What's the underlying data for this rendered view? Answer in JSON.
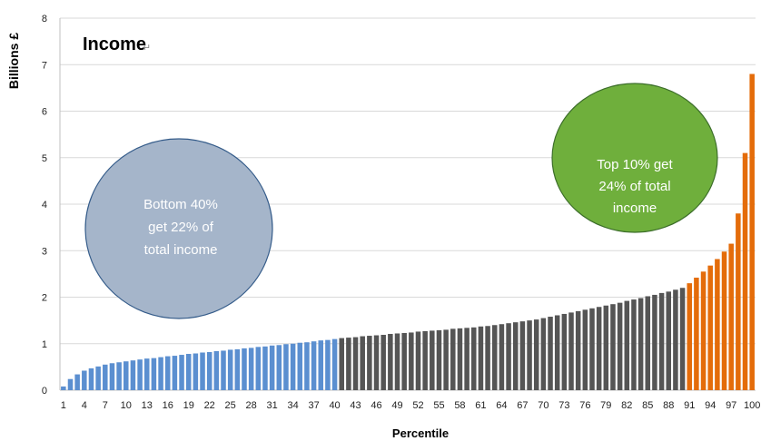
{
  "chart_data": {
    "type": "bar",
    "title": "Income",
    "xlabel": "Percentile",
    "ylabel": "Billions £",
    "ylim": [
      0,
      8
    ],
    "yticks": [
      0,
      1,
      2,
      3,
      4,
      5,
      6,
      7,
      8
    ],
    "grid": true,
    "x_tick_labels": [
      "1",
      "4",
      "7",
      "10",
      "13",
      "16",
      "19",
      "22",
      "25",
      "28",
      "31",
      "34",
      "37",
      "40",
      "43",
      "46",
      "49",
      "52",
      "55",
      "58",
      "61",
      "64",
      "67",
      "70",
      "73",
      "76",
      "79",
      "82",
      "85",
      "88",
      "91",
      "94",
      "97",
      "100"
    ],
    "categories": [
      "1",
      "2",
      "3",
      "4",
      "5",
      "6",
      "7",
      "8",
      "9",
      "10",
      "11",
      "12",
      "13",
      "14",
      "15",
      "16",
      "17",
      "18",
      "19",
      "20",
      "21",
      "22",
      "23",
      "24",
      "25",
      "26",
      "27",
      "28",
      "29",
      "30",
      "31",
      "32",
      "33",
      "34",
      "35",
      "36",
      "37",
      "38",
      "39",
      "40",
      "41",
      "42",
      "43",
      "44",
      "45",
      "46",
      "47",
      "48",
      "49",
      "50",
      "51",
      "52",
      "53",
      "54",
      "55",
      "56",
      "57",
      "58",
      "59",
      "60",
      "61",
      "62",
      "63",
      "64",
      "65",
      "66",
      "67",
      "68",
      "69",
      "70",
      "71",
      "72",
      "73",
      "74",
      "75",
      "76",
      "77",
      "78",
      "79",
      "80",
      "81",
      "82",
      "83",
      "84",
      "85",
      "86",
      "87",
      "88",
      "89",
      "90",
      "91",
      "92",
      "93",
      "94",
      "95",
      "96",
      "97",
      "98",
      "99",
      "100"
    ],
    "values": [
      0.08,
      0.24,
      0.34,
      0.42,
      0.47,
      0.51,
      0.55,
      0.58,
      0.6,
      0.62,
      0.64,
      0.66,
      0.68,
      0.69,
      0.71,
      0.73,
      0.74,
      0.76,
      0.78,
      0.79,
      0.81,
      0.82,
      0.84,
      0.85,
      0.87,
      0.88,
      0.9,
      0.91,
      0.93,
      0.94,
      0.96,
      0.97,
      0.99,
      1.0,
      1.02,
      1.03,
      1.05,
      1.07,
      1.08,
      1.1,
      1.12,
      1.13,
      1.14,
      1.16,
      1.17,
      1.18,
      1.19,
      1.21,
      1.22,
      1.23,
      1.24,
      1.26,
      1.27,
      1.28,
      1.29,
      1.3,
      1.32,
      1.33,
      1.34,
      1.35,
      1.37,
      1.38,
      1.4,
      1.42,
      1.44,
      1.46,
      1.48,
      1.5,
      1.52,
      1.55,
      1.58,
      1.61,
      1.64,
      1.67,
      1.7,
      1.73,
      1.76,
      1.79,
      1.82,
      1.85,
      1.88,
      1.92,
      1.95,
      1.98,
      2.02,
      2.05,
      2.09,
      2.12,
      2.16,
      2.2,
      2.3,
      2.42,
      2.55,
      2.68,
      2.82,
      2.98,
      3.15,
      3.8,
      5.1,
      6.8
    ],
    "bar_groups": [
      {
        "from": 1,
        "to": 40,
        "color": "#5B8FD0"
      },
      {
        "from": 41,
        "to": 90,
        "color": "#555555"
      },
      {
        "from": 91,
        "to": 100,
        "color": "#E46C0A"
      }
    ]
  },
  "annotations": {
    "bottom": {
      "lines": [
        "Bottom 40%",
        "get 22% of",
        "total income"
      ],
      "fill": "#A5B5CA",
      "stroke": "#355C8A"
    },
    "top": {
      "lines": [
        "Top 10% get",
        "24% of total",
        "income"
      ],
      "fill": "#6FAF3C",
      "stroke": "#3C6E2A"
    }
  }
}
